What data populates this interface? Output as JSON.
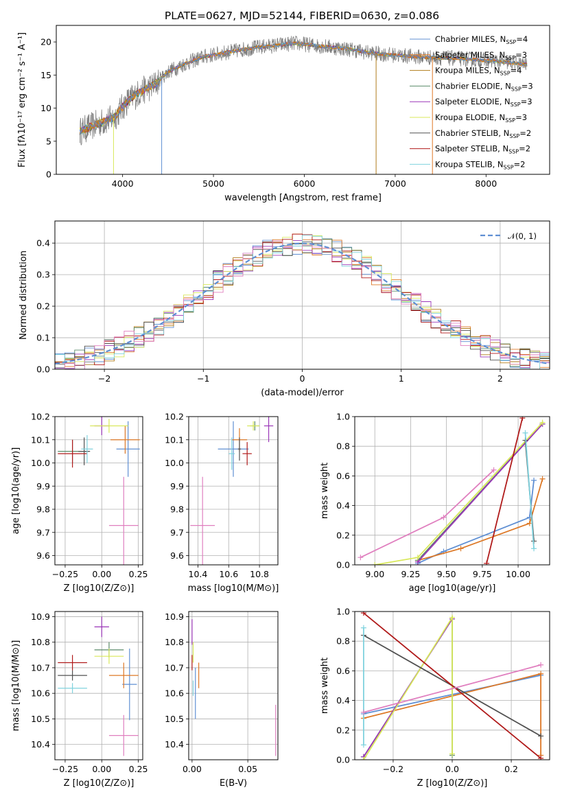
{
  "title": "PLATE=0627, MJD=52144, FIBERID=0630, z=0.086",
  "colors": {
    "Chabrier MILES": "#5f8fd3",
    "Salpeter MILES": "#dd7826",
    "Kroupa MILES": "#b07b1a",
    "Chabrier ELODIE": "#5a8a68",
    "Salpeter ELODIE": "#9a36b8",
    "Kroupa ELODIE": "#d8e85a",
    "Chabrier STELIB": "#505050",
    "Salpeter STELIB": "#b01a1a",
    "Kroupa STELIB": "#7fd2de",
    "pink": "#e07fbf",
    "gauss": "#5f8fd3"
  },
  "chart_data": [
    {
      "type": "line",
      "panel": "spectrum",
      "title": "PLATE=0627, MJD=52144, FIBERID=0630, z=0.086",
      "xlabel": "wavelength [Angstrom, rest frame]",
      "ylabel": "Flux [fλ10⁻¹⁷ erg cm⁻² s⁻¹ A⁻¹]",
      "xlim": [
        3270,
        8700
      ],
      "ylim": [
        0,
        22.5
      ],
      "xticks": [
        4000,
        5000,
        6000,
        7000,
        8000
      ],
      "yticks": [
        0,
        5,
        10,
        15,
        20
      ],
      "legend_position": "right",
      "legend": [
        "Chabrier MILES, N_SSP=4",
        "Salpeter MILES, N_SSP=3",
        "Kroupa MILES, N_SSP=4",
        "Chabrier ELODIE, N_SSP=3",
        "Salpeter ELODIE, N_SSP=3",
        "Kroupa ELODIE, N_SSP=3",
        "Chabrier STELIB, N_SSP=2",
        "Salpeter STELIB, N_SSP=2",
        "Kroupa STELIB, N_SSP=2"
      ],
      "continuum": {
        "x": [
          3530,
          3700,
          3900,
          4050,
          4200,
          4350,
          4500,
          4700,
          4900,
          5100,
          5300,
          5500,
          5700,
          5900,
          6100,
          6300,
          6500,
          6700,
          6900,
          7100,
          7300,
          7500,
          7700,
          7900,
          8100,
          8300,
          8450
        ],
        "y": [
          6.5,
          7.5,
          8.5,
          11,
          12.5,
          13.5,
          15.5,
          16.8,
          17.8,
          18.3,
          18.8,
          19.2,
          19.5,
          19.8,
          19.5,
          19.2,
          18.9,
          18.4,
          18.1,
          17.9,
          17.7,
          17.6,
          17.5,
          17.3,
          17.1,
          16.8,
          16.6
        ]
      }
    },
    {
      "type": "bar",
      "panel": "residual-histogram",
      "xlabel": "(data-model)/error",
      "ylabel": "Normed distribution",
      "xlim": [
        -2.5,
        2.5
      ],
      "ylim": [
        0,
        0.47
      ],
      "xticks": [
        -2,
        -1,
        0,
        1,
        2
      ],
      "yticks": [
        0.0,
        0.1,
        0.2,
        0.3,
        0.4
      ],
      "legend": [
        "N(0,1)"
      ],
      "legend_position": "top-right",
      "bin_width": 0.1
    },
    {
      "type": "scatter",
      "panel": "age-vs-Z",
      "xlabel": "Z [log10(Z/Z⊙)]",
      "ylabel": "age  [log10(age/yr)]",
      "xlim": [
        -0.32,
        0.28
      ],
      "ylim": [
        9.56,
        10.2
      ],
      "xticks": [
        -0.25,
        0.0,
        0.25
      ],
      "yticks": [
        9.6,
        9.7,
        9.8,
        9.9,
        10.0,
        10.1,
        10.2
      ],
      "points": [
        {
          "name": "Chabrier MILES",
          "x": 0.18,
          "y": 10.06,
          "xerr": 0.08,
          "yerr": 0.12
        },
        {
          "name": "Salpeter MILES",
          "x": 0.16,
          "y": 10.1,
          "xerr": 0.1,
          "yerr": 0.06
        },
        {
          "name": "Chabrier ELODIE",
          "x": -0.2,
          "y": 10.05,
          "xerr": 0.1,
          "yerr": 0.05
        },
        {
          "name": "Salpeter ELODIE",
          "x": 0.0,
          "y": 10.16,
          "xerr": 0.05,
          "yerr": 0.04
        },
        {
          "name": "Kroupa ELODIE",
          "x": 0.05,
          "y": 10.16,
          "xerr": 0.13,
          "yerr": 0.03
        },
        {
          "name": "Chabrier STELIB",
          "x": -0.12,
          "y": 10.05,
          "xerr": 0.04,
          "yerr": 0.06
        },
        {
          "name": "Salpeter STELIB",
          "x": -0.2,
          "y": 10.04,
          "xerr": 0.1,
          "yerr": 0.06
        },
        {
          "name": "Kroupa STELIB",
          "x": -0.1,
          "y": 10.06,
          "xerr": 0.04,
          "yerr": 0.06
        },
        {
          "name": "pink",
          "x": 0.15,
          "y": 9.73,
          "xerr": 0.1,
          "yerr": 0.21
        }
      ]
    },
    {
      "type": "scatter",
      "panel": "age-vs-mass",
      "xlabel": "mass [log10(M/M⊙)]",
      "xlim": [
        10.34,
        10.92
      ],
      "ylim": [
        9.56,
        10.2
      ],
      "xticks": [
        10.4,
        10.6,
        10.8
      ],
      "yticks": [
        9.6,
        9.7,
        9.8,
        9.9,
        10.0,
        10.1,
        10.2
      ],
      "points": [
        {
          "name": "Chabrier MILES",
          "x": 10.63,
          "y": 10.06,
          "xerr": 0.1,
          "yerr": 0.12
        },
        {
          "name": "Salpeter MILES",
          "x": 10.67,
          "y": 10.1,
          "xerr": 0.05,
          "yerr": 0.05
        },
        {
          "name": "Chabrier ELODIE",
          "x": 10.77,
          "y": 10.16,
          "xerr": 0.03,
          "yerr": 0.02
        },
        {
          "name": "Salpeter ELODIE",
          "x": 10.86,
          "y": 10.16,
          "xerr": 0.03,
          "yerr": 0.07
        },
        {
          "name": "Kroupa ELODIE",
          "x": 10.76,
          "y": 10.16,
          "xerr": 0.04,
          "yerr": 0.02
        },
        {
          "name": "Chabrier STELIB",
          "x": 10.67,
          "y": 10.06,
          "xerr": 0.01,
          "yerr": 0.05
        },
        {
          "name": "Salpeter STELIB",
          "x": 10.72,
          "y": 10.04,
          "xerr": 0.03,
          "yerr": 0.05
        },
        {
          "name": "Kroupa STELIB",
          "x": 10.62,
          "y": 10.04,
          "xerr": 0.02,
          "yerr": 0.07
        },
        {
          "name": "pink",
          "x": 10.43,
          "y": 9.73,
          "xerr": 0.08,
          "yerr": 0.21
        }
      ]
    },
    {
      "type": "line",
      "panel": "mass-weight-vs-age",
      "xlabel": "age  [log10(age/yr)]",
      "ylabel": "mass weight",
      "xlim": [
        8.86,
        10.22
      ],
      "ylim": [
        0,
        1
      ],
      "xticks": [
        9.0,
        9.25,
        9.5,
        9.75,
        10.0
      ],
      "yticks": [
        0.0,
        0.2,
        0.4,
        0.6,
        0.8,
        1.0
      ],
      "series": [
        {
          "name": "Chabrier MILES",
          "x": [
            9.3,
            9.48,
            10.08,
            10.11
          ],
          "y": [
            0.01,
            0.09,
            0.32,
            0.57
          ]
        },
        {
          "name": "Salpeter MILES",
          "x": [
            9.3,
            9.6,
            10.08,
            10.17
          ],
          "y": [
            0.03,
            0.11,
            0.28,
            0.58
          ]
        },
        {
          "name": "Chabrier ELODIE",
          "x": [
            9.3,
            10.17
          ],
          "y": [
            0.03,
            0.95
          ]
        },
        {
          "name": "Salpeter ELODIE",
          "x": [
            9.3,
            10.17
          ],
          "y": [
            0.02,
            0.95
          ]
        },
        {
          "name": "Kroupa ELODIE",
          "x": [
            9.0,
            9.3,
            10.17
          ],
          "y": [
            0.0,
            0.05,
            0.96
          ]
        },
        {
          "name": "Chabrier STELIB",
          "x": [
            10.05,
            10.11
          ],
          "y": [
            0.84,
            0.16
          ]
        },
        {
          "name": "Salpeter STELIB",
          "x": [
            9.78,
            10.03
          ],
          "y": [
            0.01,
            0.99
          ]
        },
        {
          "name": "Kroupa STELIB",
          "x": [
            10.05,
            10.11
          ],
          "y": [
            0.89,
            0.11
          ]
        },
        {
          "name": "pink",
          "x": [
            8.9,
            9.48,
            9.83
          ],
          "y": [
            0.05,
            0.32,
            0.64
          ]
        }
      ]
    },
    {
      "type": "scatter",
      "panel": "mass-vs-Z",
      "xlabel": "Z [log10(Z/Z⊙)]",
      "ylabel": "mass [log10(M/M⊙)]",
      "xlim": [
        -0.32,
        0.28
      ],
      "ylim": [
        10.34,
        10.92
      ],
      "xticks": [
        -0.25,
        0.0,
        0.25
      ],
      "yticks": [
        10.4,
        10.5,
        10.6,
        10.7,
        10.8,
        10.9
      ],
      "points": [
        {
          "name": "Chabrier MILES",
          "x": 0.19,
          "y": 10.635,
          "xerr": 0.05,
          "yerr": 0.14
        },
        {
          "name": "Salpeter MILES",
          "x": 0.15,
          "y": 10.67,
          "xerr": 0.1,
          "yerr": 0.05
        },
        {
          "name": "Chabrier ELODIE",
          "x": 0.05,
          "y": 10.77,
          "xerr": 0.1,
          "yerr": 0.03
        },
        {
          "name": "Salpeter ELODIE",
          "x": 0.0,
          "y": 10.86,
          "xerr": 0.05,
          "yerr": 0.04
        },
        {
          "name": "Kroupa ELODIE",
          "x": 0.05,
          "y": 10.745,
          "xerr": 0.1,
          "yerr": 0.03
        },
        {
          "name": "Chabrier STELIB",
          "x": -0.2,
          "y": 10.67,
          "xerr": 0.1,
          "yerr": 0.02
        },
        {
          "name": "Salpeter STELIB",
          "x": -0.2,
          "y": 10.72,
          "xerr": 0.1,
          "yerr": 0.03
        },
        {
          "name": "Kroupa STELIB",
          "x": -0.2,
          "y": 10.62,
          "xerr": 0.1,
          "yerr": 0.02
        },
        {
          "name": "pink",
          "x": 0.15,
          "y": 10.435,
          "xerr": 0.1,
          "yerr": 0.08
        }
      ]
    },
    {
      "type": "scatter",
      "panel": "mass-vs-ebv",
      "xlabel": "E(B-V)",
      "xlim": [
        -0.003,
        0.077
      ],
      "ylim": [
        10.34,
        10.92
      ],
      "xticks": [
        0.0,
        0.05
      ],
      "yticks": [
        10.4,
        10.5,
        10.6,
        10.7,
        10.8,
        10.9
      ],
      "points": [
        {
          "name": "Chabrier MILES",
          "x": 0.003,
          "y": 10.6,
          "yerr": 0.1
        },
        {
          "name": "Salpeter MILES",
          "x": 0.006,
          "y": 10.67,
          "yerr": 0.05
        },
        {
          "name": "Salpeter ELODIE",
          "x": 0.0,
          "y": 10.84,
          "yerr": 0.05
        },
        {
          "name": "Kroupa ELODIE",
          "x": 0.001,
          "y": 10.76,
          "yerr": 0.04
        },
        {
          "name": "Salpeter STELIB",
          "x": 0.0,
          "y": 10.72,
          "yerr": 0.03
        },
        {
          "name": "Kroupa STELIB",
          "x": 0.001,
          "y": 10.62,
          "yerr": 0.03
        },
        {
          "name": "pink",
          "x": 0.075,
          "y": 10.455,
          "yerr": 0.1
        }
      ]
    },
    {
      "type": "line",
      "panel": "mass-weight-vs-Z",
      "xlabel": "Z [log10(Z/Z⊙)]",
      "ylabel": "mass weight",
      "xlim": [
        -0.33,
        0.33
      ],
      "ylim": [
        0,
        1
      ],
      "xticks": [
        -0.2,
        0.0,
        0.2
      ],
      "yticks": [
        0.0,
        0.2,
        0.4,
        0.6,
        0.8,
        1.0
      ],
      "series": [
        {
          "name": "Chabrier MILES",
          "x": [
            -0.3,
            0.3
          ],
          "y": [
            0.31,
            0.57
          ]
        },
        {
          "name": "Salpeter MILES",
          "x": [
            -0.3,
            0.3,
            0.3
          ],
          "y": [
            0.28,
            0.58,
            0.03
          ]
        },
        {
          "name": "Chabrier ELODIE",
          "x": [
            -0.3,
            0.0,
            0.0
          ],
          "y": [
            0.02,
            0.95,
            0.03
          ]
        },
        {
          "name": "Salpeter ELODIE",
          "x": [
            -0.3,
            0.0
          ],
          "y": [
            0.02,
            0.95
          ]
        },
        {
          "name": "Kroupa ELODIE",
          "x": [
            -0.3,
            0.0,
            0.0
          ],
          "y": [
            0.0,
            0.96,
            0.04
          ]
        },
        {
          "name": "Chabrier STELIB",
          "x": [
            -0.3,
            0.3
          ],
          "y": [
            0.84,
            0.16
          ]
        },
        {
          "name": "Salpeter STELIB",
          "x": [
            -0.3,
            0.3
          ],
          "y": [
            0.99,
            0.01
          ]
        },
        {
          "name": "Kroupa STELIB",
          "x": [
            -0.3,
            -0.3
          ],
          "y": [
            0.89,
            0.1
          ]
        },
        {
          "name": "pink",
          "x": [
            -0.3,
            0.3
          ],
          "y": [
            0.32,
            0.64
          ]
        }
      ]
    }
  ]
}
